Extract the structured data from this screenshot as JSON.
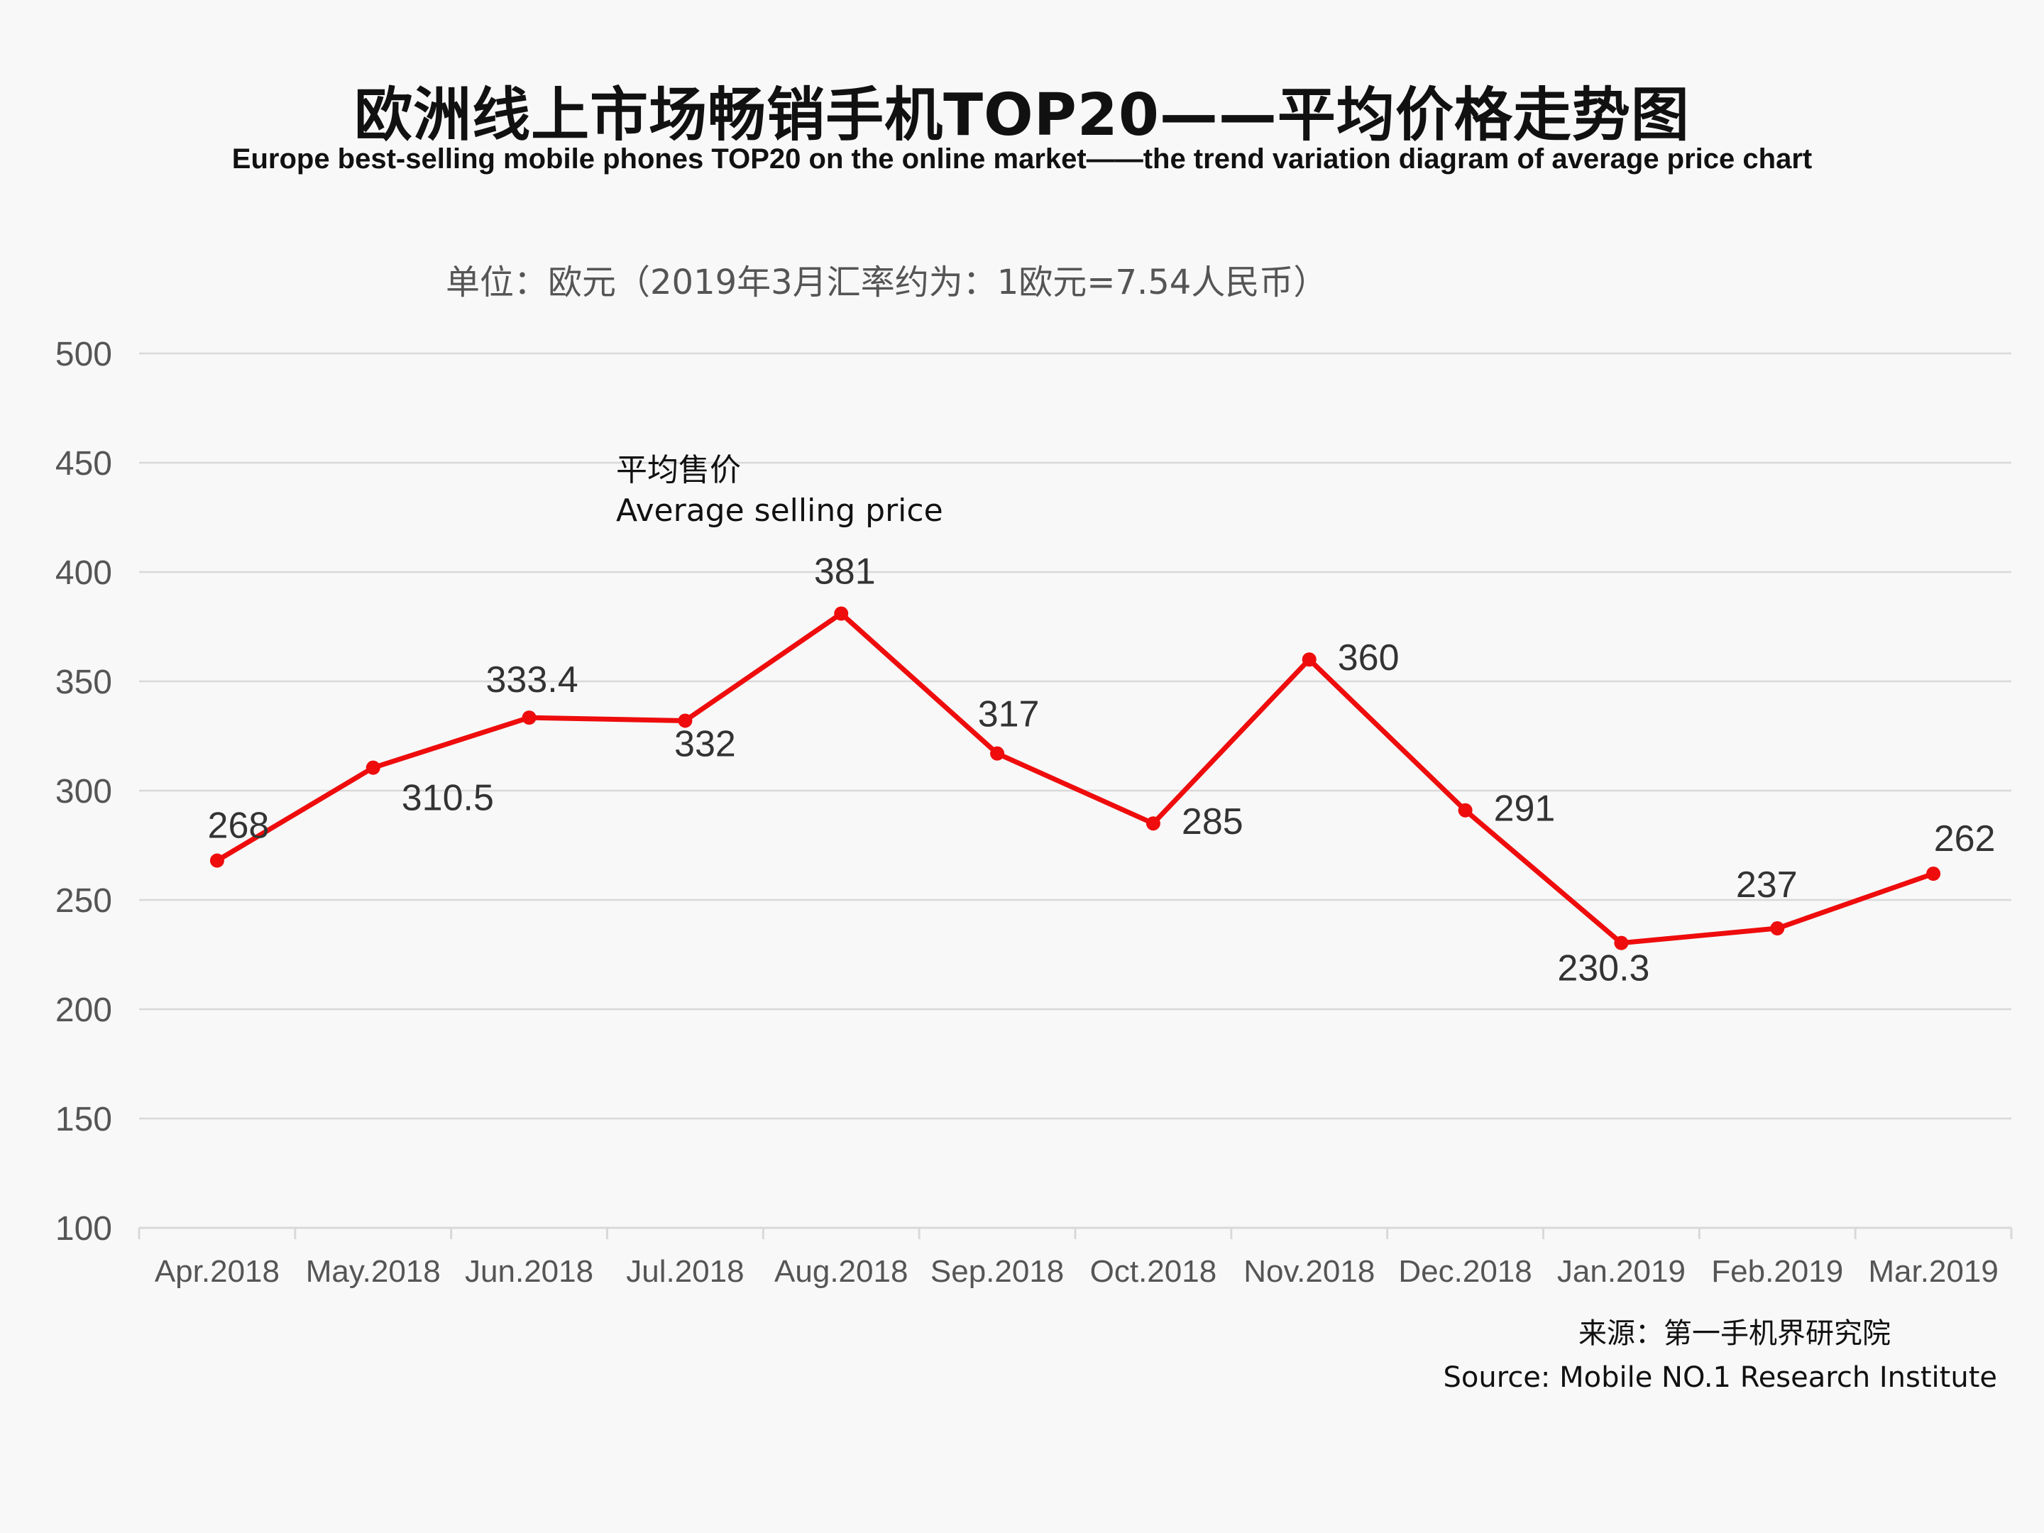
{
  "header": {
    "title": "欧洲线上市场畅销手机TOP20——平均价格走势图",
    "subtitle": "Europe best-selling mobile phones TOP20 on the online market——the trend variation diagram of average price chart",
    "unit": "单位：欧元（2019年3月汇率约为：1欧元=7.54人民币）"
  },
  "source": {
    "zh": "来源：第一手机界研究院",
    "en": "Source: Mobile NO.1 Research Institute"
  },
  "colors": {
    "line": "#ee0c0c",
    "grid": "#d9d9d9",
    "background": "#f8f8f8"
  },
  "chart_data": {
    "type": "line",
    "title": "欧洲线上市场畅销手机TOP20——平均价格走势图",
    "subtitle": "Europe best-selling mobile phones TOP20 on the online market——the trend variation diagram of average price chart",
    "categories": [
      "Apr.2018",
      "May.2018",
      "Jun.2018",
      "Jul.2018",
      "Aug.2018",
      "Sep.2018",
      "Oct.2018",
      "Nov.2018",
      "Dec.2018",
      "Jan.2019",
      "Feb.2019",
      "Mar.2019"
    ],
    "series": [
      {
        "name": "平均售价\nAverage selling price",
        "name_zh": "平均售价",
        "name_en": "Average selling price",
        "values": [
          268,
          310.5,
          333.4,
          332,
          381,
          317,
          285,
          360,
          291,
          230.3,
          237,
          262
        ],
        "labels": [
          "268",
          "310.5",
          "333.4",
          "332",
          "381",
          "317",
          "285",
          "360",
          "291",
          "230.3",
          "237",
          "262"
        ]
      }
    ],
    "ylim": [
      100,
      500
    ],
    "yticks": [
      100,
      150,
      200,
      250,
      300,
      350,
      400,
      450,
      500
    ],
    "grid": true,
    "legend": "none"
  }
}
